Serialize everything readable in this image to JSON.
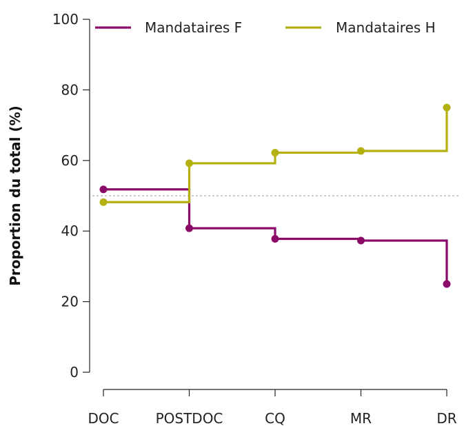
{
  "chart_data": {
    "type": "line",
    "step": true,
    "categories": [
      "DOC",
      "POSTDOC",
      "CQ",
      "MR",
      "DR"
    ],
    "ylabel": "Proportion du total (%)",
    "xlabel": "",
    "ylim": [
      0,
      100
    ],
    "yticks": [
      0,
      20,
      40,
      60,
      80,
      100
    ],
    "reference_line": 50,
    "legend_position": "top",
    "series": [
      {
        "name": "Mandataires F",
        "color": "#8b0b69",
        "values": [
          51.8,
          40.8,
          37.8,
          37.3,
          25.0
        ]
      },
      {
        "name": "Mandataires H",
        "color": "#b5b012",
        "values": [
          48.2,
          59.2,
          62.2,
          62.7,
          75.0
        ]
      }
    ]
  }
}
